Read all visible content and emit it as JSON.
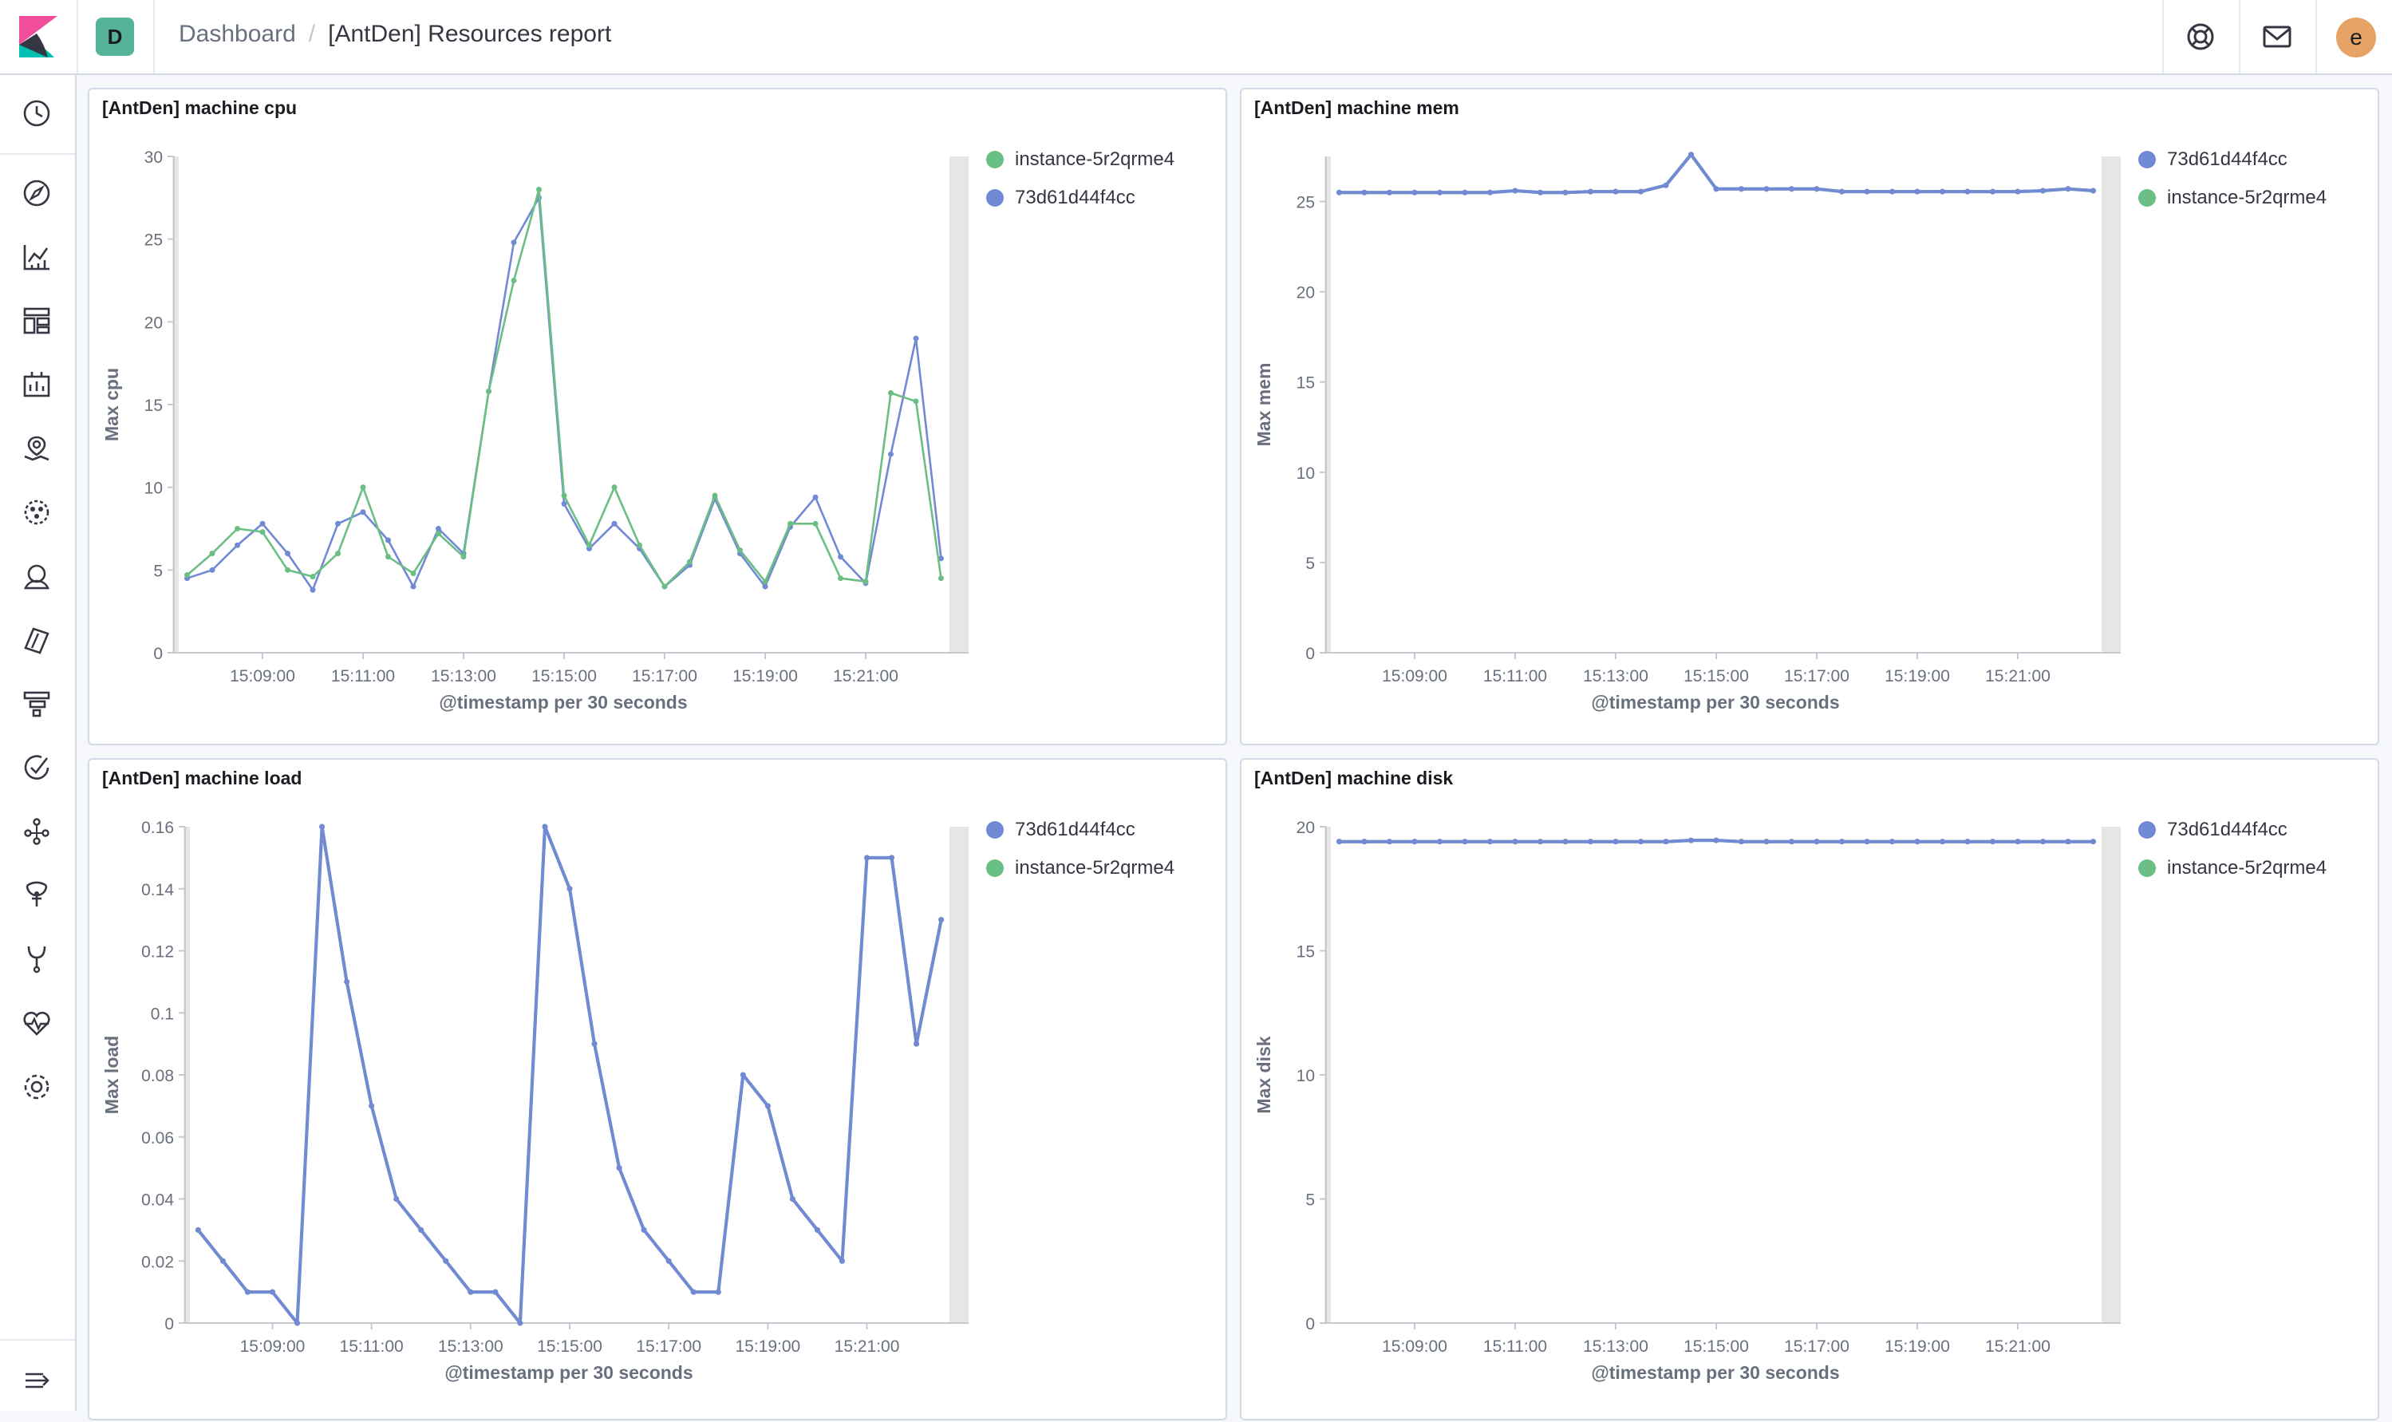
{
  "header": {
    "space_initial": "D",
    "breadcrumbs": [
      "Dashboard",
      "[AntDen] Resources report"
    ],
    "user_initial": "e",
    "icons": [
      "kibana-logo-icon",
      "help-icon",
      "mail-icon"
    ]
  },
  "sidenav": {
    "icons": [
      "recent-icon",
      "discover-icon",
      "visualize-icon",
      "dashboard-icon",
      "canvas-icon",
      "maps-icon",
      "ml-icon",
      "infrastructure-icon",
      "logs-icon",
      "apm-icon",
      "uptime-icon",
      "graph-icon",
      "dev-tools-icon",
      "monitoring-icon",
      "stack-monitoring-icon",
      "management-icon"
    ],
    "collapse_icon": "collapse-menu-icon"
  },
  "colors": {
    "green": "#54b399",
    "blue": "#6092c0",
    "series_green": "#6cbf84",
    "series_blue": "#7289d4"
  },
  "panels": [
    {
      "title": "[AntDen] machine cpu",
      "legend": [
        "instance-5r2qrme4",
        "73d61d44f4cc"
      ],
      "legend_colors": [
        "#6cbf84",
        "#7289d4"
      ]
    },
    {
      "title": "[AntDen] machine mem",
      "legend": [
        "73d61d44f4cc",
        "instance-5r2qrme4"
      ],
      "legend_colors": [
        "#7289d4",
        "#6cbf84"
      ]
    },
    {
      "title": "[AntDen] machine load",
      "legend": [
        "73d61d44f4cc",
        "instance-5r2qrme4"
      ],
      "legend_colors": [
        "#7289d4",
        "#6cbf84"
      ]
    },
    {
      "title": "[AntDen] machine disk",
      "legend": [
        "73d61d44f4cc",
        "instance-5r2qrme4"
      ],
      "legend_colors": [
        "#7289d4",
        "#6cbf84"
      ]
    }
  ],
  "chart_data": [
    {
      "type": "line",
      "title": "[AntDen] machine cpu",
      "xlabel": "@timestamp per 30 seconds",
      "ylabel": "Max cpu",
      "ylim": [
        0,
        30
      ],
      "yticks": [
        0,
        5,
        10,
        15,
        20,
        25,
        30
      ],
      "xticks": [
        "15:09:00",
        "15:11:00",
        "15:13:00",
        "15:15:00",
        "15:17:00",
        "15:19:00",
        "15:21:00"
      ],
      "x": [
        "15:07:30",
        "15:08:00",
        "15:08:30",
        "15:09:00",
        "15:09:30",
        "15:10:00",
        "15:10:30",
        "15:11:00",
        "15:11:30",
        "15:12:00",
        "15:12:30",
        "15:13:00",
        "15:13:30",
        "15:14:00",
        "15:14:30",
        "15:15:00",
        "15:15:30",
        "15:16:00",
        "15:16:30",
        "15:17:00",
        "15:17:30",
        "15:18:00",
        "15:18:30",
        "15:19:00",
        "15:19:30",
        "15:20:00",
        "15:20:30",
        "15:21:00",
        "15:21:30",
        "15:22:00",
        "15:22:30"
      ],
      "series": [
        {
          "name": "instance-5r2qrme4",
          "color": "#6cbf84",
          "values": [
            4.7,
            6.0,
            7.5,
            7.3,
            5.0,
            4.6,
            6.0,
            10.0,
            5.8,
            4.8,
            7.2,
            5.8,
            15.8,
            22.5,
            28.0,
            9.5,
            6.5,
            10.0,
            6.5,
            4.0,
            5.5,
            9.5,
            6.2,
            4.3,
            7.8,
            7.8,
            4.5,
            4.3,
            15.7,
            15.2,
            4.5
          ]
        },
        {
          "name": "73d61d44f4cc",
          "color": "#7289d4",
          "values": [
            4.5,
            5.0,
            6.5,
            7.8,
            6.0,
            3.8,
            7.8,
            8.5,
            6.8,
            4.0,
            7.5,
            6.0,
            15.8,
            24.8,
            27.5,
            9.0,
            6.3,
            7.8,
            6.3,
            4.0,
            5.3,
            9.3,
            6.0,
            4.0,
            7.6,
            9.4,
            5.8,
            4.2,
            12.0,
            19.0,
            5.7
          ]
        }
      ]
    },
    {
      "type": "line",
      "title": "[AntDen] machine mem",
      "xlabel": "@timestamp per 30 seconds",
      "ylabel": "Max mem",
      "ylim": [
        0,
        27.5
      ],
      "yticks": [
        0,
        5,
        10,
        15,
        20,
        25
      ],
      "xticks": [
        "15:09:00",
        "15:11:00",
        "15:13:00",
        "15:15:00",
        "15:17:00",
        "15:19:00",
        "15:21:00"
      ],
      "x": [
        "15:07:30",
        "15:08:00",
        "15:08:30",
        "15:09:00",
        "15:09:30",
        "15:10:00",
        "15:10:30",
        "15:11:00",
        "15:11:30",
        "15:12:00",
        "15:12:30",
        "15:13:00",
        "15:13:30",
        "15:14:00",
        "15:14:30",
        "15:15:00",
        "15:15:30",
        "15:16:00",
        "15:16:30",
        "15:17:00",
        "15:17:30",
        "15:18:00",
        "15:18:30",
        "15:19:00",
        "15:19:30",
        "15:20:00",
        "15:20:30",
        "15:21:00",
        "15:21:30",
        "15:22:00",
        "15:22:30"
      ],
      "series": [
        {
          "name": "73d61d44f4cc",
          "color": "#7289d4",
          "values": [
            25.5,
            25.5,
            25.5,
            25.5,
            25.5,
            25.5,
            25.5,
            25.6,
            25.5,
            25.5,
            25.55,
            25.55,
            25.55,
            25.9,
            27.6,
            25.7,
            25.7,
            25.7,
            25.7,
            25.7,
            25.55,
            25.55,
            25.55,
            25.55,
            25.55,
            25.55,
            25.55,
            25.55,
            25.6,
            25.7,
            25.6
          ]
        },
        {
          "name": "instance-5r2qrme4",
          "color": "#6cbf84",
          "values": [
            25.5,
            25.5,
            25.5,
            25.5,
            25.5,
            25.5,
            25.5,
            25.6,
            25.5,
            25.5,
            25.55,
            25.55,
            25.55,
            25.9,
            27.6,
            25.7,
            25.7,
            25.7,
            25.7,
            25.7,
            25.55,
            25.55,
            25.55,
            25.55,
            25.55,
            25.55,
            25.55,
            25.55,
            25.6,
            25.7,
            25.6
          ]
        }
      ]
    },
    {
      "type": "line",
      "title": "[AntDen] machine load",
      "xlabel": "@timestamp per 30 seconds",
      "ylabel": "Max load",
      "ylim": [
        0,
        0.16
      ],
      "yticks": [
        0,
        0.02,
        0.04,
        0.06,
        0.08,
        0.1,
        0.12,
        0.14,
        0.16
      ],
      "xticks": [
        "15:09:00",
        "15:11:00",
        "15:13:00",
        "15:15:00",
        "15:17:00",
        "15:19:00",
        "15:21:00"
      ],
      "x": [
        "15:07:30",
        "15:08:00",
        "15:08:30",
        "15:09:00",
        "15:09:30",
        "15:10:00",
        "15:10:30",
        "15:11:00",
        "15:11:30",
        "15:12:00",
        "15:12:30",
        "15:13:00",
        "15:13:30",
        "15:14:00",
        "15:14:30",
        "15:15:00",
        "15:15:30",
        "15:16:00",
        "15:16:30",
        "15:17:00",
        "15:17:30",
        "15:18:00",
        "15:18:30",
        "15:19:00",
        "15:19:30",
        "15:20:00",
        "15:20:30",
        "15:21:00",
        "15:21:30",
        "15:22:00",
        "15:22:30"
      ],
      "series": [
        {
          "name": "73d61d44f4cc",
          "color": "#7289d4",
          "values": [
            0.03,
            0.02,
            0.01,
            0.01,
            0.0,
            0.16,
            0.11,
            0.07,
            0.04,
            0.03,
            0.02,
            0.01,
            0.01,
            0.0,
            0.16,
            0.14,
            0.09,
            0.05,
            0.03,
            0.02,
            0.01,
            0.01,
            0.08,
            0.07,
            0.04,
            0.03,
            0.02,
            0.15,
            0.15,
            0.09,
            0.13
          ]
        },
        {
          "name": "instance-5r2qrme4",
          "color": "#6cbf84",
          "values": [
            0.03,
            0.02,
            0.01,
            0.01,
            0.0,
            0.16,
            0.11,
            0.07,
            0.04,
            0.03,
            0.02,
            0.01,
            0.01,
            0.0,
            0.16,
            0.14,
            0.09,
            0.05,
            0.03,
            0.02,
            0.01,
            0.01,
            0.08,
            0.07,
            0.04,
            0.03,
            0.02,
            0.15,
            0.15,
            0.09,
            0.13
          ]
        }
      ]
    },
    {
      "type": "line",
      "title": "[AntDen] machine disk",
      "xlabel": "@timestamp per 30 seconds",
      "ylabel": "Max disk",
      "ylim": [
        0,
        20
      ],
      "yticks": [
        0,
        5,
        10,
        15,
        20
      ],
      "xticks": [
        "15:09:00",
        "15:11:00",
        "15:13:00",
        "15:15:00",
        "15:17:00",
        "15:19:00",
        "15:21:00"
      ],
      "x": [
        "15:07:30",
        "15:08:00",
        "15:08:30",
        "15:09:00",
        "15:09:30",
        "15:10:00",
        "15:10:30",
        "15:11:00",
        "15:11:30",
        "15:12:00",
        "15:12:30",
        "15:13:00",
        "15:13:30",
        "15:14:00",
        "15:14:30",
        "15:15:00",
        "15:15:30",
        "15:16:00",
        "15:16:30",
        "15:17:00",
        "15:17:30",
        "15:18:00",
        "15:18:30",
        "15:19:00",
        "15:19:30",
        "15:20:00",
        "15:20:30",
        "15:21:00",
        "15:21:30",
        "15:22:00",
        "15:22:30"
      ],
      "series": [
        {
          "name": "73d61d44f4cc",
          "color": "#7289d4",
          "values": [
            19.4,
            19.4,
            19.4,
            19.4,
            19.4,
            19.4,
            19.4,
            19.4,
            19.4,
            19.4,
            19.4,
            19.4,
            19.4,
            19.4,
            19.45,
            19.45,
            19.4,
            19.4,
            19.4,
            19.4,
            19.4,
            19.4,
            19.4,
            19.4,
            19.4,
            19.4,
            19.4,
            19.4,
            19.4,
            19.4,
            19.4
          ]
        },
        {
          "name": "instance-5r2qrme4",
          "color": "#6cbf84",
          "values": [
            19.4,
            19.4,
            19.4,
            19.4,
            19.4,
            19.4,
            19.4,
            19.4,
            19.4,
            19.4,
            19.4,
            19.4,
            19.4,
            19.4,
            19.45,
            19.45,
            19.4,
            19.4,
            19.4,
            19.4,
            19.4,
            19.4,
            19.4,
            19.4,
            19.4,
            19.4,
            19.4,
            19.4,
            19.4,
            19.4,
            19.4
          ]
        }
      ]
    }
  ]
}
